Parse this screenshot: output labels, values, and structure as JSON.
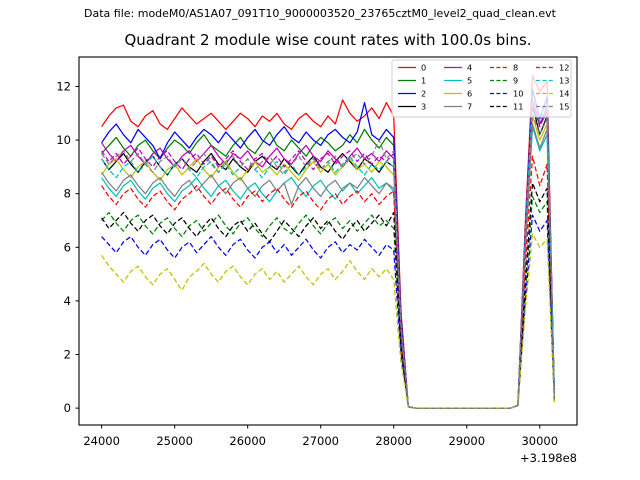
{
  "header": {
    "data_file": "Data file: modeM0/AS1A07_091T10_9000003520_23765cztM0_level2_quad_clean.evt"
  },
  "chart_data": {
    "type": "line",
    "title": "Quadrant 2 module wise count rates with 100.0s bins.",
    "xlabel": "",
    "ylabel": "",
    "x_offset_label": "+3.198e8",
    "bin_seconds": "100.0",
    "xlim": [
      23690,
      30510
    ],
    "ylim": [
      -0.63,
      13.1
    ],
    "xticks": [
      24000,
      25000,
      26000,
      27000,
      28000,
      29000,
      30000
    ],
    "yticks": [
      0,
      2,
      4,
      6,
      8,
      10,
      12
    ],
    "x_start": 24000,
    "x_step": 100,
    "grid": false,
    "legend_position": "upper right",
    "legend_columns": 4,
    "series": [
      {
        "label": "0",
        "color": "#ff0000",
        "dashed": false,
        "y": [
          10.5,
          10.9,
          11.2,
          11.3,
          10.7,
          10.5,
          10.9,
          11.1,
          10.6,
          10.4,
          10.8,
          11.2,
          10.9,
          10.6,
          10.8,
          11.0,
          10.7,
          10.4,
          10.7,
          11.0,
          10.8,
          10.5,
          10.9,
          10.7,
          11.0,
          10.6,
          10.4,
          10.8,
          11.0,
          10.7,
          10.5,
          10.9,
          10.6,
          11.5,
          11.0,
          10.7,
          10.9,
          11.2,
          10.8,
          11.4,
          10.9,
          3.6,
          0.05,
          0,
          0,
          0,
          0,
          0,
          0,
          0,
          0,
          0,
          0,
          0,
          0,
          0,
          0,
          0.1,
          6.8,
          12.4,
          11.8,
          12.2,
          0.4
        ]
      },
      {
        "label": "1",
        "color": "#008000",
        "dashed": false,
        "y": [
          9.5,
          9.8,
          10.1,
          9.7,
          9.4,
          9.8,
          10.0,
          9.6,
          9.3,
          9.7,
          10.0,
          9.8,
          9.5,
          9.9,
          10.2,
          9.8,
          9.6,
          9.4,
          9.8,
          10.1,
          9.7,
          9.5,
          9.9,
          10.3,
          9.8,
          9.6,
          10.0,
          9.7,
          9.4,
          9.8,
          10.1,
          9.9,
          9.6,
          9.8,
          10.2,
          9.9,
          10.4,
          10.0,
          9.7,
          10.1,
          9.8,
          3.2,
          0.05,
          0,
          0,
          0,
          0,
          0,
          0,
          0,
          0,
          0,
          0,
          0,
          0,
          0,
          0,
          0.1,
          6.2,
          11.2,
          10.6,
          11.0,
          0.35
        ]
      },
      {
        "label": "2",
        "color": "#0000ff",
        "dashed": false,
        "y": [
          9.9,
          10.3,
          10.6,
          10.2,
          9.9,
          10.4,
          10.1,
          9.8,
          9.3,
          9.9,
          10.3,
          10.0,
          9.7,
          10.1,
          10.4,
          10.2,
          9.9,
          10.3,
          10.0,
          9.7,
          10.1,
          10.4,
          10.0,
          9.8,
          10.2,
          10.5,
          10.1,
          9.9,
          10.3,
          10.0,
          9.8,
          10.2,
          10.4,
          10.1,
          9.9,
          10.3,
          11.4,
          10.2,
          10.0,
          10.4,
          10.1,
          3.4,
          0.05,
          0,
          0,
          0,
          0,
          0,
          0,
          0,
          0,
          0,
          0,
          0,
          0,
          0,
          0,
          0.1,
          6.5,
          11.9,
          10.8,
          11.6,
          0.42
        ]
      },
      {
        "label": "3",
        "color": "#000000",
        "dashed": false,
        "y": [
          9.3,
          8.9,
          9.2,
          9.5,
          9.1,
          8.8,
          9.2,
          9.4,
          9.0,
          8.7,
          9.1,
          9.3,
          9.0,
          8.8,
          9.2,
          9.5,
          9.1,
          8.9,
          9.3,
          9.0,
          8.8,
          9.2,
          9.4,
          9.1,
          8.9,
          9.3,
          9.0,
          8.7,
          9.1,
          9.4,
          9.0,
          8.8,
          9.2,
          9.5,
          9.2,
          8.9,
          9.3,
          9.1,
          8.8,
          9.2,
          9.0,
          3.0,
          0.05,
          0,
          0,
          0,
          0,
          0,
          0,
          0,
          0,
          0,
          0,
          0,
          0,
          0,
          0,
          0.1,
          6.2,
          11.3,
          10.2,
          10.9,
          0.38
        ]
      },
      {
        "label": "4",
        "color": "#bf00bf",
        "dashed": false,
        "y": [
          9.9,
          9.5,
          9.2,
          9.6,
          9.8,
          9.4,
          9.1,
          9.5,
          9.7,
          9.3,
          9.0,
          9.4,
          9.6,
          9.2,
          9.5,
          9.8,
          9.4,
          9.1,
          9.5,
          9.3,
          9.6,
          9.2,
          9.0,
          9.4,
          9.7,
          9.3,
          9.1,
          9.5,
          9.8,
          9.4,
          9.2,
          9.6,
          9.3,
          9.0,
          9.4,
          9.7,
          9.3,
          9.5,
          9.2,
          9.6,
          9.3,
          3.1,
          0.05,
          0,
          0,
          0,
          0,
          0,
          0,
          0,
          0,
          0,
          0,
          0,
          0,
          0,
          0,
          0.1,
          6.3,
          11.5,
          10.6,
          11.2,
          0.4
        ]
      },
      {
        "label": "5",
        "color": "#00bfbf",
        "dashed": false,
        "y": [
          8.6,
          8.2,
          7.9,
          8.3,
          8.5,
          8.1,
          7.8,
          8.2,
          8.4,
          8.0,
          7.7,
          8.1,
          8.3,
          8.6,
          8.2,
          7.9,
          8.3,
          8.5,
          8.1,
          7.8,
          8.2,
          8.4,
          8.0,
          7.7,
          8.1,
          8.4,
          8.6,
          8.2,
          7.9,
          8.3,
          8.5,
          8.1,
          7.8,
          8.2,
          8.4,
          8.0,
          8.3,
          8.6,
          8.2,
          8.4,
          8.1,
          2.7,
          0.05,
          0,
          0,
          0,
          0,
          0,
          0,
          0,
          0,
          0,
          0,
          0,
          0,
          0,
          0,
          0.1,
          5.8,
          10.5,
          9.6,
          10.2,
          0.33
        ]
      },
      {
        "label": "6",
        "color": "#bfbf00",
        "dashed": false,
        "y": [
          8.7,
          9.1,
          9.3,
          8.9,
          8.6,
          9.0,
          9.2,
          8.8,
          8.5,
          8.9,
          9.1,
          8.7,
          9.0,
          9.3,
          8.9,
          8.6,
          9.0,
          9.2,
          8.8,
          8.5,
          8.9,
          9.2,
          8.8,
          9.0,
          8.7,
          9.1,
          8.8,
          8.5,
          8.9,
          9.2,
          8.8,
          9.1,
          8.7,
          9.0,
          9.3,
          8.9,
          9.1,
          8.8,
          9.2,
          9.0,
          8.7,
          2.9,
          0.05,
          0,
          0,
          0,
          0,
          0,
          0,
          0,
          0,
          0,
          0,
          0,
          0,
          0,
          0,
          0.1,
          6.0,
          10.9,
          10.0,
          10.6,
          0.37
        ]
      },
      {
        "label": "7",
        "color": "#808080",
        "dashed": false,
        "y": [
          8.8,
          8.4,
          8.1,
          8.5,
          8.7,
          8.3,
          8.0,
          8.4,
          8.6,
          8.2,
          7.9,
          8.3,
          8.5,
          8.1,
          8.4,
          8.7,
          8.3,
          8.0,
          8.4,
          8.6,
          8.2,
          7.9,
          8.3,
          8.5,
          8.1,
          8.4,
          7.6,
          8.3,
          8.6,
          8.2,
          7.9,
          8.3,
          8.5,
          8.1,
          8.4,
          8.2,
          8.6,
          8.3,
          8.0,
          8.4,
          8.2,
          2.8,
          0.05,
          0,
          0,
          0,
          0,
          0,
          0,
          0,
          0,
          0,
          0,
          0,
          0,
          0,
          0,
          0.1,
          5.8,
          10.6,
          9.7,
          10.4,
          0.35
        ]
      },
      {
        "label": "8",
        "color": "#ff0000",
        "dashed": true,
        "y": [
          8.3,
          7.9,
          7.6,
          8.0,
          8.2,
          7.8,
          7.5,
          7.9,
          8.1,
          7.7,
          7.4,
          7.8,
          8.0,
          8.3,
          7.9,
          7.6,
          8.0,
          8.2,
          7.8,
          7.5,
          7.9,
          8.1,
          7.7,
          8.0,
          8.2,
          7.8,
          7.5,
          7.9,
          8.1,
          7.7,
          7.4,
          7.8,
          8.0,
          7.6,
          7.9,
          8.1,
          7.7,
          8.0,
          7.6,
          7.9,
          8.1,
          2.6,
          0.05,
          0,
          0,
          0,
          0,
          0,
          0,
          0,
          0,
          0,
          0,
          0,
          0,
          0,
          0,
          0.1,
          5.2,
          9.4,
          8.3,
          9.1,
          0.32
        ]
      },
      {
        "label": "9",
        "color": "#008000",
        "dashed": true,
        "y": [
          7.0,
          7.3,
          6.9,
          6.6,
          7.0,
          7.2,
          6.8,
          6.5,
          6.9,
          7.1,
          6.7,
          6.4,
          6.8,
          7.0,
          6.6,
          6.9,
          7.2,
          6.8,
          6.5,
          6.9,
          7.1,
          6.7,
          6.4,
          6.8,
          7.1,
          6.7,
          6.5,
          6.9,
          7.2,
          6.8,
          6.5,
          6.9,
          7.1,
          6.7,
          7.0,
          6.6,
          6.9,
          7.2,
          6.8,
          7.0,
          6.7,
          2.2,
          0.05,
          0,
          0,
          0,
          0,
          0,
          0,
          0,
          0,
          0,
          0,
          0,
          0,
          0,
          0,
          0.1,
          4.3,
          7.9,
          7.3,
          7.7,
          0.28
        ]
      },
      {
        "label": "10",
        "color": "#0000ff",
        "dashed": true,
        "y": [
          6.4,
          6.1,
          5.8,
          6.2,
          6.4,
          6.0,
          5.7,
          6.1,
          6.3,
          5.9,
          5.6,
          6.0,
          6.2,
          5.8,
          6.1,
          6.4,
          6.0,
          5.7,
          6.1,
          6.3,
          5.9,
          5.6,
          6.0,
          6.2,
          5.8,
          6.1,
          5.7,
          6.0,
          6.3,
          5.9,
          5.6,
          6.0,
          6.2,
          5.8,
          6.1,
          5.9,
          6.3,
          6.0,
          5.7,
          6.1,
          5.9,
          2.0,
          0.05,
          0,
          0,
          0,
          0,
          0,
          0,
          0,
          0,
          0,
          0,
          0,
          0,
          0,
          0,
          0.1,
          3.9,
          7.2,
          6.6,
          7.0,
          0.25
        ]
      },
      {
        "label": "11",
        "color": "#000000",
        "dashed": true,
        "y": [
          7.1,
          6.7,
          7.0,
          7.3,
          6.9,
          6.6,
          7.0,
          7.2,
          6.8,
          6.5,
          6.9,
          7.1,
          6.7,
          6.4,
          6.8,
          7.1,
          6.7,
          6.4,
          6.8,
          7.0,
          6.6,
          6.9,
          6.5,
          6.2,
          6.6,
          7.0,
          6.7,
          6.4,
          6.8,
          7.1,
          6.7,
          7.0,
          6.6,
          6.3,
          6.7,
          7.0,
          6.6,
          6.9,
          7.2,
          6.8,
          7.3,
          2.3,
          0.05,
          0,
          0,
          0,
          0,
          0,
          0,
          0,
          0,
          0,
          0,
          0,
          0,
          0,
          0,
          0.1,
          4.6,
          8.4,
          7.7,
          8.2,
          0.3
        ]
      },
      {
        "label": "12",
        "color": "#bf00bf",
        "dashed": true,
        "y": [
          9.6,
          9.2,
          9.5,
          9.1,
          9.4,
          9.7,
          9.3,
          9.0,
          9.4,
          9.6,
          9.2,
          8.9,
          9.3,
          9.5,
          9.1,
          9.4,
          9.0,
          9.3,
          9.6,
          9.2,
          8.9,
          9.3,
          9.5,
          9.1,
          9.4,
          9.0,
          9.3,
          9.6,
          9.2,
          8.9,
          9.3,
          9.5,
          9.1,
          9.4,
          9.6,
          9.2,
          9.5,
          9.1,
          9.4,
          9.2,
          9.5,
          3.1,
          0.05,
          0,
          0,
          0,
          0,
          0,
          0,
          0,
          0,
          0,
          0,
          0,
          0,
          0,
          0,
          0.1,
          6.3,
          11.4,
          10.5,
          11.1,
          0.41
        ]
      },
      {
        "label": "13",
        "color": "#00bfbf",
        "dashed": true,
        "y": [
          9.3,
          8.9,
          8.6,
          9.0,
          9.2,
          8.8,
          9.1,
          9.4,
          9.0,
          8.7,
          9.1,
          9.3,
          8.9,
          8.6,
          9.0,
          9.2,
          8.8,
          9.1,
          8.7,
          9.0,
          9.3,
          8.9,
          8.6,
          9.0,
          9.2,
          8.8,
          9.1,
          8.7,
          9.0,
          9.3,
          8.9,
          9.2,
          8.8,
          9.1,
          9.4,
          9.0,
          8.7,
          9.1,
          8.9,
          9.2,
          9.0,
          3.0,
          0.05,
          0,
          0,
          0,
          0,
          0,
          0,
          0,
          0,
          0,
          0,
          0,
          0,
          0,
          0,
          0.1,
          6.4,
          11.6,
          10.7,
          11.3,
          0.42
        ]
      },
      {
        "label": "14",
        "color": "#bfbf00",
        "dashed": true,
        "y": [
          5.7,
          5.3,
          5.0,
          4.7,
          5.1,
          5.3,
          4.9,
          4.6,
          5.0,
          5.2,
          4.8,
          4.4,
          4.9,
          5.1,
          5.4,
          5.0,
          4.7,
          5.1,
          5.3,
          4.9,
          4.6,
          5.0,
          5.2,
          4.8,
          5.1,
          4.7,
          5.0,
          5.3,
          4.9,
          4.6,
          5.0,
          5.2,
          4.8,
          5.1,
          5.5,
          5.1,
          4.8,
          5.2,
          4.9,
          5.2,
          4.8,
          1.7,
          0.05,
          0,
          0,
          0,
          0,
          0,
          0,
          0,
          0,
          0,
          0,
          0,
          0,
          0,
          0,
          0.1,
          3.6,
          6.5,
          6.0,
          6.3,
          0.22
        ]
      },
      {
        "label": "15",
        "color": "#808080",
        "dashed": true,
        "y": [
          9.5,
          9.1,
          9.4,
          9.6,
          9.2,
          9.5,
          9.1,
          8.8,
          9.2,
          9.4,
          9.0,
          9.3,
          8.9,
          9.2,
          9.5,
          9.1,
          8.8,
          9.2,
          9.4,
          9.0,
          9.3,
          8.9,
          9.2,
          9.4,
          9.0,
          8.7,
          9.1,
          9.4,
          9.0,
          9.3,
          8.9,
          9.2,
          9.4,
          9.0,
          9.3,
          9.5,
          9.1,
          9.4,
          10.0,
          9.3,
          9.6,
          3.1,
          0.05,
          0,
          0,
          0,
          0,
          0,
          0,
          0,
          0,
          0,
          0,
          0,
          0,
          0,
          0,
          0.1,
          6.1,
          11.0,
          10.2,
          10.8,
          0.38
        ]
      }
    ]
  }
}
